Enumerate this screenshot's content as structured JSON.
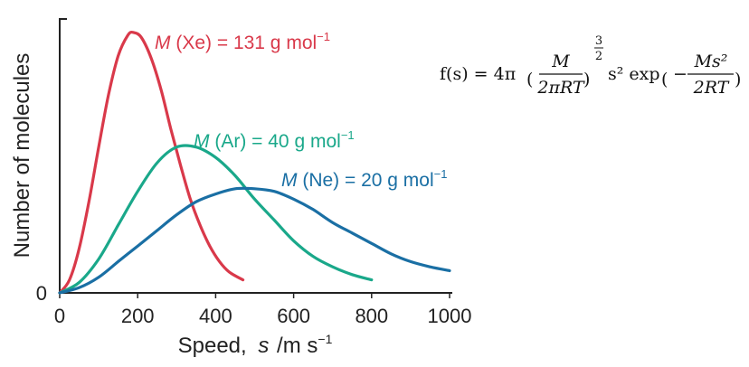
{
  "chart_data": {
    "type": "line",
    "xlabel_prefix": "Speed,",
    "xlabel_symbol": "s",
    "xlabel_unit": "m s",
    "xlabel_unit_exp": "−1",
    "ylabel": "Number of molecules",
    "y_zero_label": "0",
    "xlim": [
      0,
      1000
    ],
    "xticks": [
      0,
      200,
      400,
      600,
      800,
      1000
    ],
    "xtick_labels": [
      "0",
      "200",
      "400",
      "600",
      "800",
      "1000"
    ],
    "grid": false,
    "series": [
      {
        "symbol": "M",
        "label_text": " (Xe) = 131 g mol",
        "label_exp": "−1",
        "color": "#d9394a",
        "x": [
          0,
          25,
          50,
          75,
          100,
          125,
          150,
          175,
          190,
          210,
          235,
          260,
          285,
          310,
          335,
          360,
          385,
          410,
          435,
          470
        ],
        "y": [
          0.0,
          0.05,
          0.17,
          0.35,
          0.56,
          0.76,
          0.91,
          0.99,
          1.0,
          0.98,
          0.9,
          0.78,
          0.63,
          0.49,
          0.36,
          0.26,
          0.18,
          0.12,
          0.08,
          0.05
        ]
      },
      {
        "symbol": "M",
        "label_text": " (Ar) = 40 g mol",
        "label_exp": "−1",
        "color": "#1aa88a",
        "x": [
          0,
          50,
          100,
          150,
          200,
          250,
          300,
          350,
          400,
          450,
          500,
          550,
          600,
          650,
          700,
          750,
          800
        ],
        "y": [
          0.0,
          0.04,
          0.13,
          0.26,
          0.39,
          0.5,
          0.56,
          0.56,
          0.52,
          0.45,
          0.36,
          0.28,
          0.2,
          0.14,
          0.1,
          0.07,
          0.05
        ]
      },
      {
        "symbol": "M",
        "label_text": " (Ne) = 20 g mol",
        "label_exp": "−1",
        "color": "#1a6fa4",
        "x": [
          0,
          50,
          100,
          150,
          200,
          250,
          300,
          350,
          400,
          450,
          500,
          550,
          600,
          650,
          700,
          750,
          800,
          850,
          900,
          950,
          1000
        ],
        "y": [
          0.0,
          0.02,
          0.06,
          0.12,
          0.18,
          0.24,
          0.3,
          0.35,
          0.38,
          0.4,
          0.4,
          0.39,
          0.36,
          0.32,
          0.27,
          0.23,
          0.19,
          0.15,
          0.12,
          0.1,
          0.085
        ]
      }
    ]
  },
  "formula": {
    "lhs": "f(s) = 4π",
    "num1": "M",
    "den1": "2πRT",
    "exp_num": "3",
    "exp_den": "2",
    "mid": "s² exp",
    "minus": "−",
    "num2": "Ms²",
    "den2": "2RT"
  }
}
